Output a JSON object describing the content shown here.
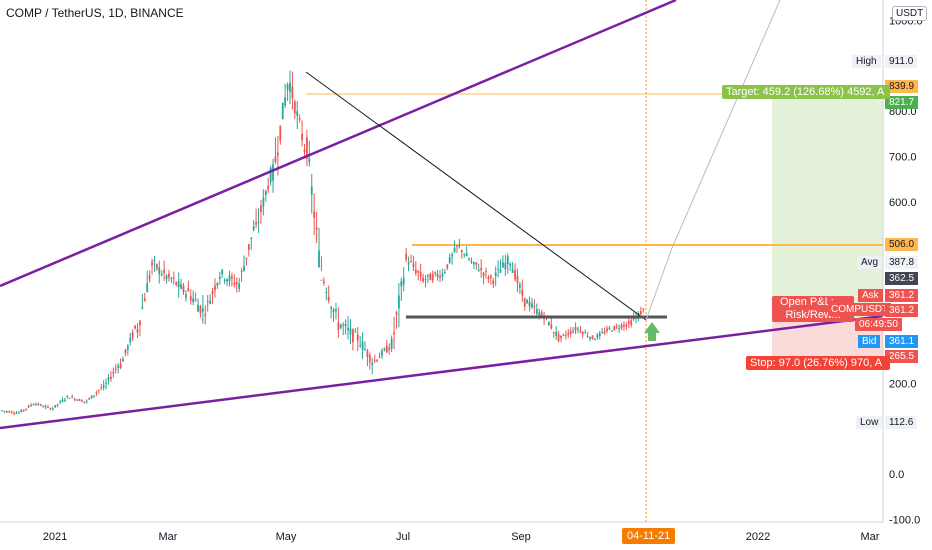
{
  "header": {
    "symbol_title": "COMP / TetherUS, 1D, BINANCE"
  },
  "price_axis": {
    "currency": "USDT",
    "ticks": [
      "1000.0",
      "800.0",
      "700.0",
      "600.0",
      "200.0",
      "0.0",
      "-100.0"
    ],
    "tick_values": [
      1000,
      800,
      700,
      600,
      200,
      0,
      -100
    ]
  },
  "time_axis": {
    "labels": [
      "2021",
      "Mar",
      "May",
      "Jul",
      "Sep",
      "2022",
      "Mar"
    ],
    "current_date": "04-11-21"
  },
  "markers": {
    "high": {
      "label": "High",
      "value": "911.0"
    },
    "low": {
      "label": "Low",
      "value": "112.6"
    },
    "avg": {
      "label": "Avg",
      "value": "387.8"
    },
    "ask": {
      "label": "Ask",
      "value": "361.2"
    },
    "bid": {
      "label": "Bid",
      "value": "361.1"
    },
    "level_839": "839.9",
    "level_821": "821.7",
    "level_506": "506.0",
    "level_362": "362.5",
    "level_265": "265.5",
    "countdown": "06:49:50",
    "symbol_tag": "COMPUSDT"
  },
  "position": {
    "target_label": "Target: 459.2 (126.68%) 4592, A",
    "stop_label": "Stop: 97.0 (26.76%) 970, A",
    "open_pl_label": "Open P&L: ...",
    "risk_reward_label": "Risk/Rew...",
    "entry_price": "361.2"
  },
  "colors": {
    "up": "#26a69a",
    "down": "#ef5350",
    "trend": "#7b1fa2",
    "resistance": "#ffb74d",
    "target_fill": "#e3f1d9",
    "stop_fill": "#fbdada",
    "target_label_bg": "#8bc34a",
    "stop_label_bg": "#f44336",
    "date_tag_bg": "#f57c00"
  },
  "chart_data": {
    "type": "candlestick",
    "series": [
      {
        "name": "COMP / TetherUS, 1D, BINANCE",
        "ohlc_weekly_approx": [
          [
            140,
            150,
            125,
            135
          ],
          [
            135,
            160,
            130,
            155
          ],
          [
            155,
            165,
            140,
            145
          ],
          [
            145,
            175,
            140,
            170
          ],
          [
            170,
            185,
            150,
            160
          ],
          [
            160,
            200,
            155,
            190
          ],
          [
            190,
            250,
            180,
            240
          ],
          [
            240,
            330,
            230,
            320
          ],
          [
            320,
            480,
            300,
            460
          ],
          [
            460,
            560,
            420,
            430
          ],
          [
            430,
            520,
            380,
            400
          ],
          [
            400,
            500,
            330,
            360
          ],
          [
            360,
            460,
            330,
            440
          ],
          [
            440,
            530,
            400,
            420
          ],
          [
            420,
            560,
            390,
            540
          ],
          [
            540,
            680,
            500,
            660
          ],
          [
            660,
            900,
            620,
            860
          ],
          [
            860,
            911,
            700,
            720
          ],
          [
            720,
            760,
            480,
            430
          ],
          [
            430,
            500,
            300,
            330
          ],
          [
            330,
            420,
            260,
            300
          ],
          [
            300,
            360,
            220,
            250
          ],
          [
            250,
            300,
            210,
            280
          ],
          [
            280,
            500,
            260,
            470
          ],
          [
            470,
            520,
            400,
            430
          ],
          [
            430,
            480,
            380,
            440
          ],
          [
            440,
            520,
            420,
            500
          ],
          [
            500,
            530,
            440,
            460
          ],
          [
            460,
            510,
            400,
            430
          ],
          [
            430,
            540,
            410,
            470
          ],
          [
            470,
            490,
            360,
            380
          ],
          [
            380,
            420,
            330,
            350
          ],
          [
            350,
            380,
            290,
            300
          ],
          [
            300,
            340,
            280,
            320
          ],
          [
            320,
            350,
            290,
            300
          ],
          [
            300,
            340,
            290,
            320
          ],
          [
            320,
            360,
            300,
            330
          ],
          [
            330,
            395,
            320,
            361
          ]
        ]
      }
    ],
    "annotations": [
      "Upper trend line",
      "Lower trend line",
      "Descending trend line from May high",
      "Resistance 506.0",
      "Support ~ 330",
      "Target 459.2 (126.68%)",
      "Stop 97.0 (26.76%)"
    ],
    "ylim": [
      -100,
      1050
    ]
  }
}
